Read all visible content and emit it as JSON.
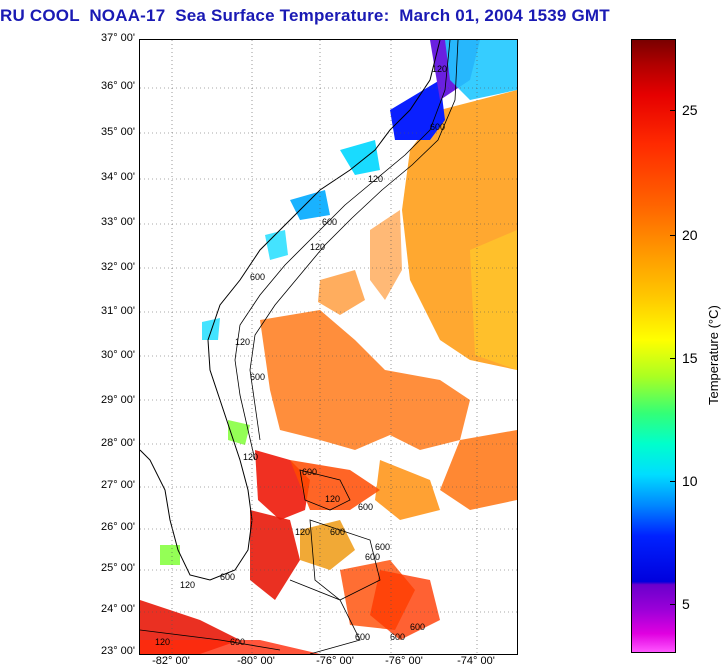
{
  "title": "RU COOL  NOAA-17  Sea Surface Temperature:  March 01, 2004 1539 GMT",
  "latitude_labels": [
    "37° 00'",
    "36° 00'",
    "35° 00'",
    "34° 00'",
    "33° 00'",
    "32° 00'",
    "31° 00'",
    "30° 00'",
    "29° 00'",
    "28° 00'",
    "27° 00'",
    "26° 00'",
    "25° 00'",
    "24° 00'",
    "23° 00'"
  ],
  "longitude_labels": [
    "-82° 00'",
    "-80° 00'",
    "-76° 00'",
    "-76° 00'",
    "-74° 00'"
  ],
  "contour_labels": [
    "120",
    "600",
    "120",
    "600",
    "120",
    "600",
    "120",
    "600",
    "120",
    "600",
    "120",
    "600",
    "600",
    "600",
    "120",
    "120",
    "600",
    "600",
    "600",
    "600",
    "600",
    "120",
    "600"
  ],
  "colorbar": {
    "label": "Temperature (°C)",
    "ticks": [
      "25",
      "20",
      "15",
      "10",
      "5"
    ],
    "range": [
      3,
      28
    ]
  },
  "colors": {
    "title": "#1a1ab4",
    "land": "#ffffff",
    "cold_shelf": "#00e0ff",
    "warm_stream": "#ff7a00"
  }
}
